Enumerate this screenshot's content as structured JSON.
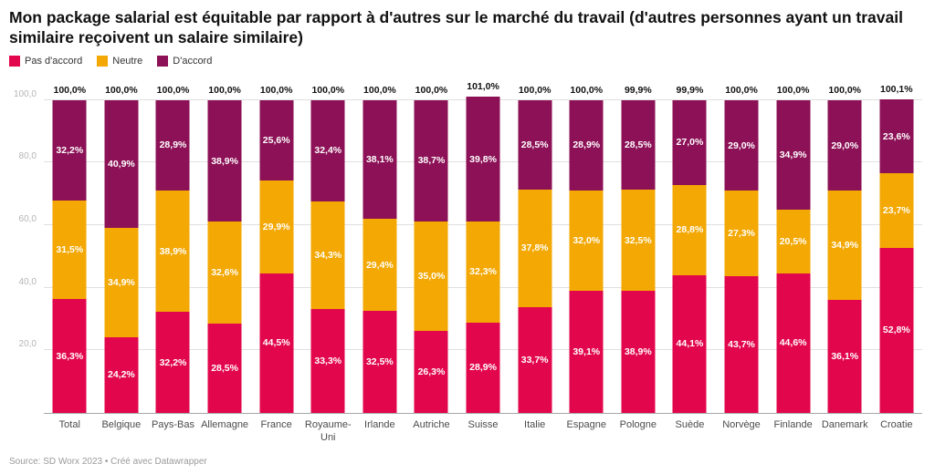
{
  "title": "Mon package salarial est équitable par rapport à d'autres sur le marché du travail (d'autres personnes ayant un travail similaire reçoivent un salaire similaire)",
  "legend": [
    {
      "label": "Pas d'accord",
      "color": "#e2074c"
    },
    {
      "label": "Neutre",
      "color": "#f3a803"
    },
    {
      "label": "D'accord",
      "color": "#8c1156"
    }
  ],
  "footer": {
    "source": "Source: SD Worx 2023 • Créé avec Datawrapper"
  },
  "chart_data": {
    "type": "bar",
    "stacked": true,
    "title": "Mon package salarial est équitable par rapport à d'autres sur le marché du travail (d'autres personnes ayant un travail similaire reçoivent un salaire similaire)",
    "xlabel": "",
    "ylabel": "",
    "ylim": [
      0,
      101
    ],
    "grid": true,
    "legend_position": "top",
    "y_ticks": [
      20,
      40,
      60,
      80,
      100
    ],
    "categories": [
      "Total",
      "Belgique",
      "Pays-Bas",
      "Allemagne",
      "France",
      "Royaume-Uni",
      "Irlande",
      "Autriche",
      "Suisse",
      "Italie",
      "Espagne",
      "Pologne",
      "Suède",
      "Norvège",
      "Finlande",
      "Danemark",
      "Croatie"
    ],
    "series": [
      {
        "name": "Pas d'accord",
        "color": "#e2074c",
        "values": [
          36.3,
          24.2,
          32.2,
          28.5,
          44.5,
          33.3,
          32.5,
          26.3,
          28.9,
          33.7,
          39.1,
          38.9,
          44.1,
          43.7,
          44.6,
          36.1,
          52.8
        ]
      },
      {
        "name": "Neutre",
        "color": "#f3a803",
        "values": [
          31.5,
          34.9,
          38.9,
          32.6,
          29.9,
          34.3,
          29.4,
          35.0,
          32.3,
          37.8,
          32.0,
          32.5,
          28.8,
          27.3,
          20.5,
          34.9,
          23.7
        ]
      },
      {
        "name": "D'accord",
        "color": "#8c1156",
        "values": [
          32.2,
          40.9,
          28.9,
          38.9,
          25.6,
          32.4,
          38.1,
          38.7,
          39.8,
          28.5,
          28.9,
          28.5,
          27.0,
          29.0,
          34.9,
          29.0,
          23.6
        ]
      }
    ],
    "totals": [
      100.0,
      100.0,
      100.0,
      100.0,
      100.0,
      100.0,
      100.0,
      100.0,
      101.0,
      100.0,
      100.0,
      99.9,
      99.9,
      100.0,
      100.0,
      100.0,
      100.1
    ]
  }
}
